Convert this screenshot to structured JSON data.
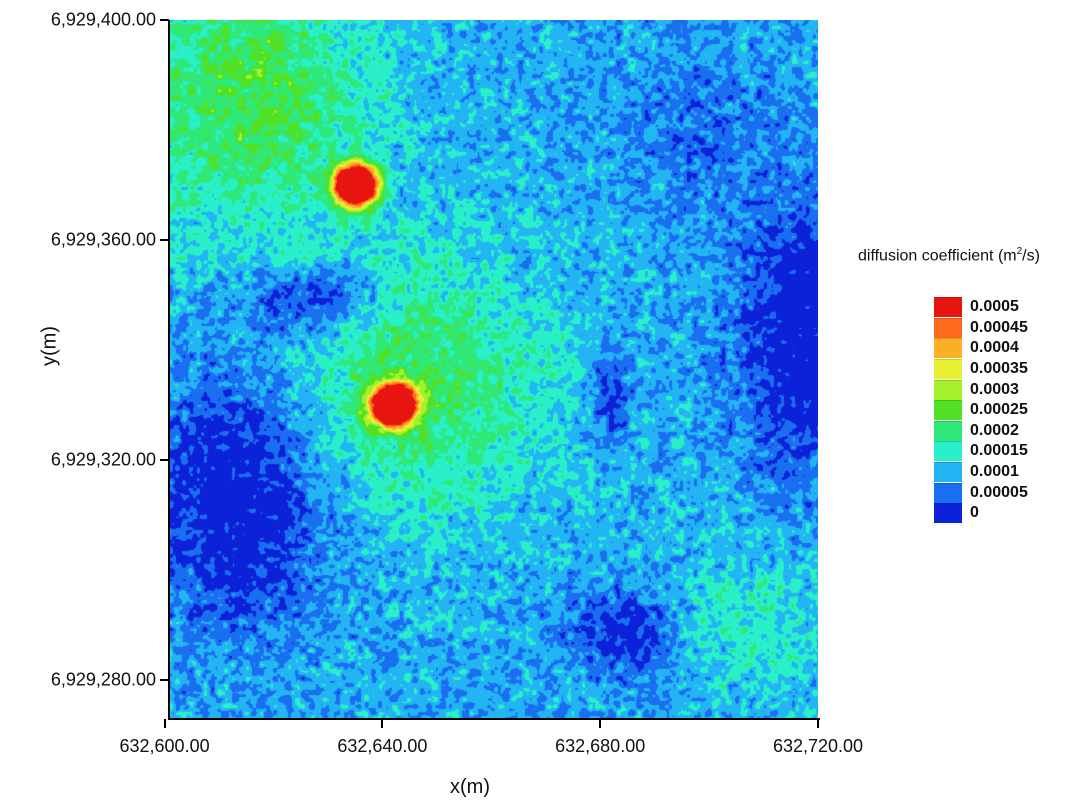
{
  "chart_data": {
    "type": "heatmap",
    "title": "",
    "xlabel": "x(m)",
    "ylabel": "y(m)",
    "x_ticks": [
      "632,600.00",
      "632,640.00",
      "632,680.00",
      "632,720.00"
    ],
    "y_ticks": [
      "6,929,400.00",
      "6,929,360.00",
      "6,929,320.00",
      "6,929,280.00"
    ],
    "x_tick_values": [
      632600,
      632640,
      632680,
      632720
    ],
    "y_tick_values": [
      6929400,
      6929360,
      6929320,
      6929280
    ],
    "xlim": [
      632601,
      632720
    ],
    "ylim": [
      6929273,
      6929400
    ],
    "colorbar": {
      "title_prefix": "diffusion coefficient (m",
      "title_sup": "2",
      "title_suffix": "/s)",
      "levels": [
        "0.0005",
        "0.00045",
        "0.0004",
        "0.00035",
        "0.0003",
        "0.00025",
        "0.0002",
        "0.00015",
        "0.0001",
        "0.00005",
        "0"
      ],
      "level_values": [
        0.0005,
        0.00045,
        0.0004,
        0.00035,
        0.0003,
        0.00025,
        0.0002,
        0.00015,
        0.0001,
        5e-05,
        0
      ],
      "colors": [
        "#e8140f",
        "#fd6a1c",
        "#fdb027",
        "#e8f033",
        "#a4f02b",
        "#52e025",
        "#2fe879",
        "#29f0c8",
        "#23b4f4",
        "#1a6ef0",
        "#0c22d8"
      ]
    },
    "hotspots": [
      {
        "x": 632635,
        "y": 6929370,
        "value": 0.0005
      },
      {
        "x": 632642,
        "y": 6929330,
        "value": 0.0005
      }
    ],
    "grid": false,
    "legend_position": "right"
  }
}
